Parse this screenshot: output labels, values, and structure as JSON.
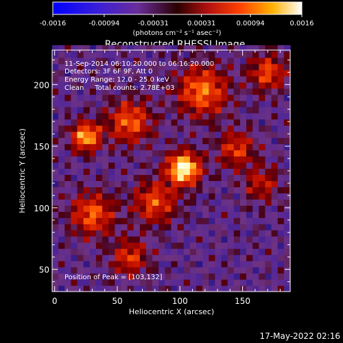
{
  "chart_data": {
    "type": "heatmap",
    "title": "Reconstructed RHESSI Image",
    "xlabel": "Heliocentric X (arcsec)",
    "ylabel": "Heliocentric Y (arcsec)",
    "xlim": [
      -2,
      188
    ],
    "ylim": [
      32,
      228
    ],
    "x_ticks": [
      0,
      50,
      100,
      150
    ],
    "y_ticks": [
      50,
      100,
      150,
      200
    ],
    "colorbar": {
      "vmin": -0.0016,
      "vmax": 0.0016,
      "tick_values": [
        -0.0016,
        -0.00094,
        -0.00031,
        0.00031,
        0.00094,
        0.0016
      ],
      "tick_labels": [
        "-0.0016",
        "-0.00094",
        "-0.00031",
        "0.00031",
        "0.00094",
        "0.0016"
      ],
      "units_label": "(photons cm⁻² s⁻¹ asec⁻²)",
      "colormap": "blue-purple-red-yellow-white"
    },
    "annotations": [
      "11-Sep-2014 06:10:20.000 to 06:16:20.000",
      "Detectors: 3F 6F 9F, Att 0",
      "Energy Range: 12.0 - 25.0 keV",
      "Clean     Total counts: 2.78E+03"
    ],
    "peak_label": "Position of Peak = [103,132]",
    "peak": [
      103,
      132
    ],
    "sources": [
      {
        "x": 103,
        "y": 132,
        "amp": 1.0,
        "sigma": 9
      },
      {
        "x": 25,
        "y": 158,
        "amp": 0.75,
        "sigma": 8
      },
      {
        "x": 60,
        "y": 170,
        "amp": 0.55,
        "sigma": 12
      },
      {
        "x": 118,
        "y": 195,
        "amp": 0.6,
        "sigma": 14
      },
      {
        "x": 30,
        "y": 95,
        "amp": 0.55,
        "sigma": 12
      },
      {
        "x": 80,
        "y": 105,
        "amp": 0.5,
        "sigma": 12
      },
      {
        "x": 145,
        "y": 148,
        "amp": 0.45,
        "sigma": 10
      },
      {
        "x": 170,
        "y": 210,
        "amp": 0.5,
        "sigma": 10
      },
      {
        "x": 60,
        "y": 60,
        "amp": 0.45,
        "sigma": 10
      },
      {
        "x": 165,
        "y": 120,
        "amp": 0.35,
        "sigma": 10
      }
    ],
    "grid": false
  },
  "footer": {
    "timestamp": "17-May-2022 02:16"
  },
  "colors": {
    "background": "#000000",
    "text": "#ffffff"
  }
}
